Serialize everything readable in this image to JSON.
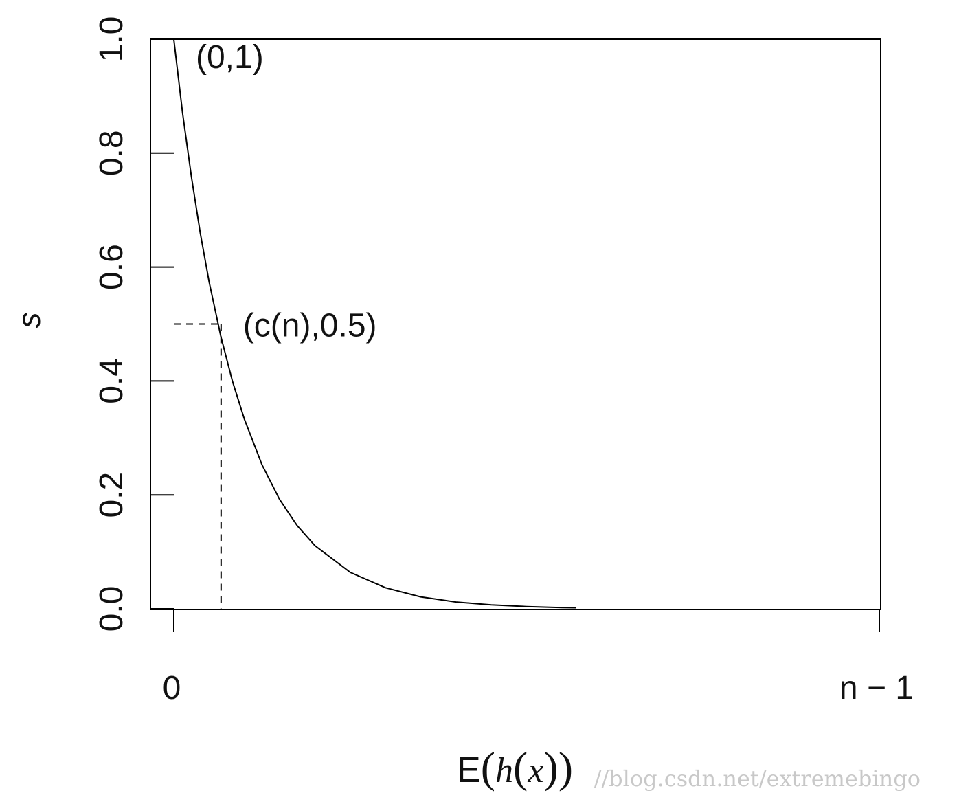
{
  "chart_data": {
    "type": "line",
    "title": "",
    "xlabel": {
      "prefix": "E",
      "inner_func": "h",
      "inner_var": "x"
    },
    "ylabel": "s",
    "xlim": [
      0,
      1
    ],
    "ylim": [
      0,
      1
    ],
    "xticks": [
      {
        "value": 0,
        "label": "0"
      },
      {
        "value": 1,
        "label": "n − 1"
      }
    ],
    "yticks": [
      {
        "value": 0.0,
        "label": "0.0"
      },
      {
        "value": 0.2,
        "label": "0.2"
      },
      {
        "value": 0.4,
        "label": "0.4"
      },
      {
        "value": 0.6,
        "label": "0.6"
      },
      {
        "value": 0.8,
        "label": "0.8"
      },
      {
        "value": 1.0,
        "label": "1.0"
      }
    ],
    "series": [
      {
        "x": [
          0,
          0.0125,
          0.025,
          0.0375,
          0.05,
          0.0667,
          0.0833,
          0.1,
          0.125,
          0.15,
          0.175,
          0.2,
          0.25,
          0.3,
          0.35,
          0.4,
          0.45,
          0.5,
          0.55,
          0.57
        ],
        "y": [
          1.0,
          0.87,
          0.758,
          0.66,
          0.574,
          0.478,
          0.399,
          0.333,
          0.253,
          0.192,
          0.146,
          0.111,
          0.064,
          0.037,
          0.021,
          0.012,
          0.007,
          0.004,
          0.002,
          0.0018
        ]
      }
    ],
    "guides": {
      "x": 0.067,
      "y": 0.5,
      "style": "dashed"
    },
    "annotations": [
      {
        "text": "(0,1)",
        "x": 0,
        "y": 1
      },
      {
        "text": "(c(n),0.5)",
        "x": 0.067,
        "y": 0.5
      }
    ],
    "grid": false,
    "legend": "none"
  },
  "watermark": "//blog.csdn.net/extremebingo"
}
